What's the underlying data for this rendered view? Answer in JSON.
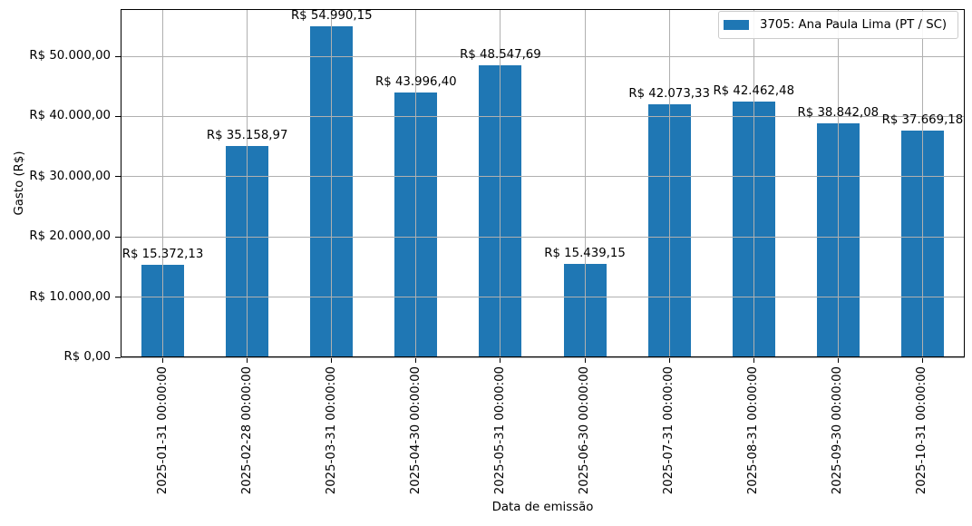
{
  "chart_data": {
    "type": "bar",
    "title": "",
    "xlabel": "Data de emissão",
    "ylabel": "Gasto (R$)",
    "categories": [
      "2025-01-31 00:00:00",
      "2025-02-28 00:00:00",
      "2025-03-31 00:00:00",
      "2025-04-30 00:00:00",
      "2025-05-31 00:00:00",
      "2025-06-30 00:00:00",
      "2025-07-31 00:00:00",
      "2025-08-31 00:00:00",
      "2025-09-30 00:00:00",
      "2025-10-31 00:00:00"
    ],
    "series": [
      {
        "name": "3705: Ana Paula Lima (PT / SC)",
        "color": "#1f77b4",
        "values": [
          15372.13,
          35158.97,
          54990.15,
          43996.4,
          48547.69,
          15439.15,
          42073.33,
          42462.48,
          38842.08,
          37669.18
        ],
        "value_labels": [
          "R$ 15.372,13",
          "R$ 35.158,97",
          "R$ 54.990,15",
          "R$ 43.996,40",
          "R$ 48.547,69",
          "R$ 15.439,15",
          "R$ 42.073,33",
          "R$ 42.462,48",
          "R$ 38.842,08",
          "R$ 37.669,18"
        ]
      }
    ],
    "y_ticks": [
      {
        "value": 0,
        "label": "R$ 0,00"
      },
      {
        "value": 10000,
        "label": "R$ 10.000,00"
      },
      {
        "value": 20000,
        "label": "R$ 20.000,00"
      },
      {
        "value": 30000,
        "label": "R$ 30.000,00"
      },
      {
        "value": 40000,
        "label": "R$ 40.000,00"
      },
      {
        "value": 50000,
        "label": "R$ 50.000,00"
      }
    ],
    "ylim": [
      0,
      57800
    ],
    "grid": true,
    "grid_on_top_of_bars": true,
    "legend": {
      "position": "upper-right",
      "label": "3705: Ana Paula Lima (PT / SC)"
    },
    "colors": {
      "bar": "#1f77b4",
      "grid": "#b0b0b0",
      "spine": "#000000",
      "text": "#000000",
      "legend_border": "#cccccc",
      "background": "#ffffff"
    }
  }
}
